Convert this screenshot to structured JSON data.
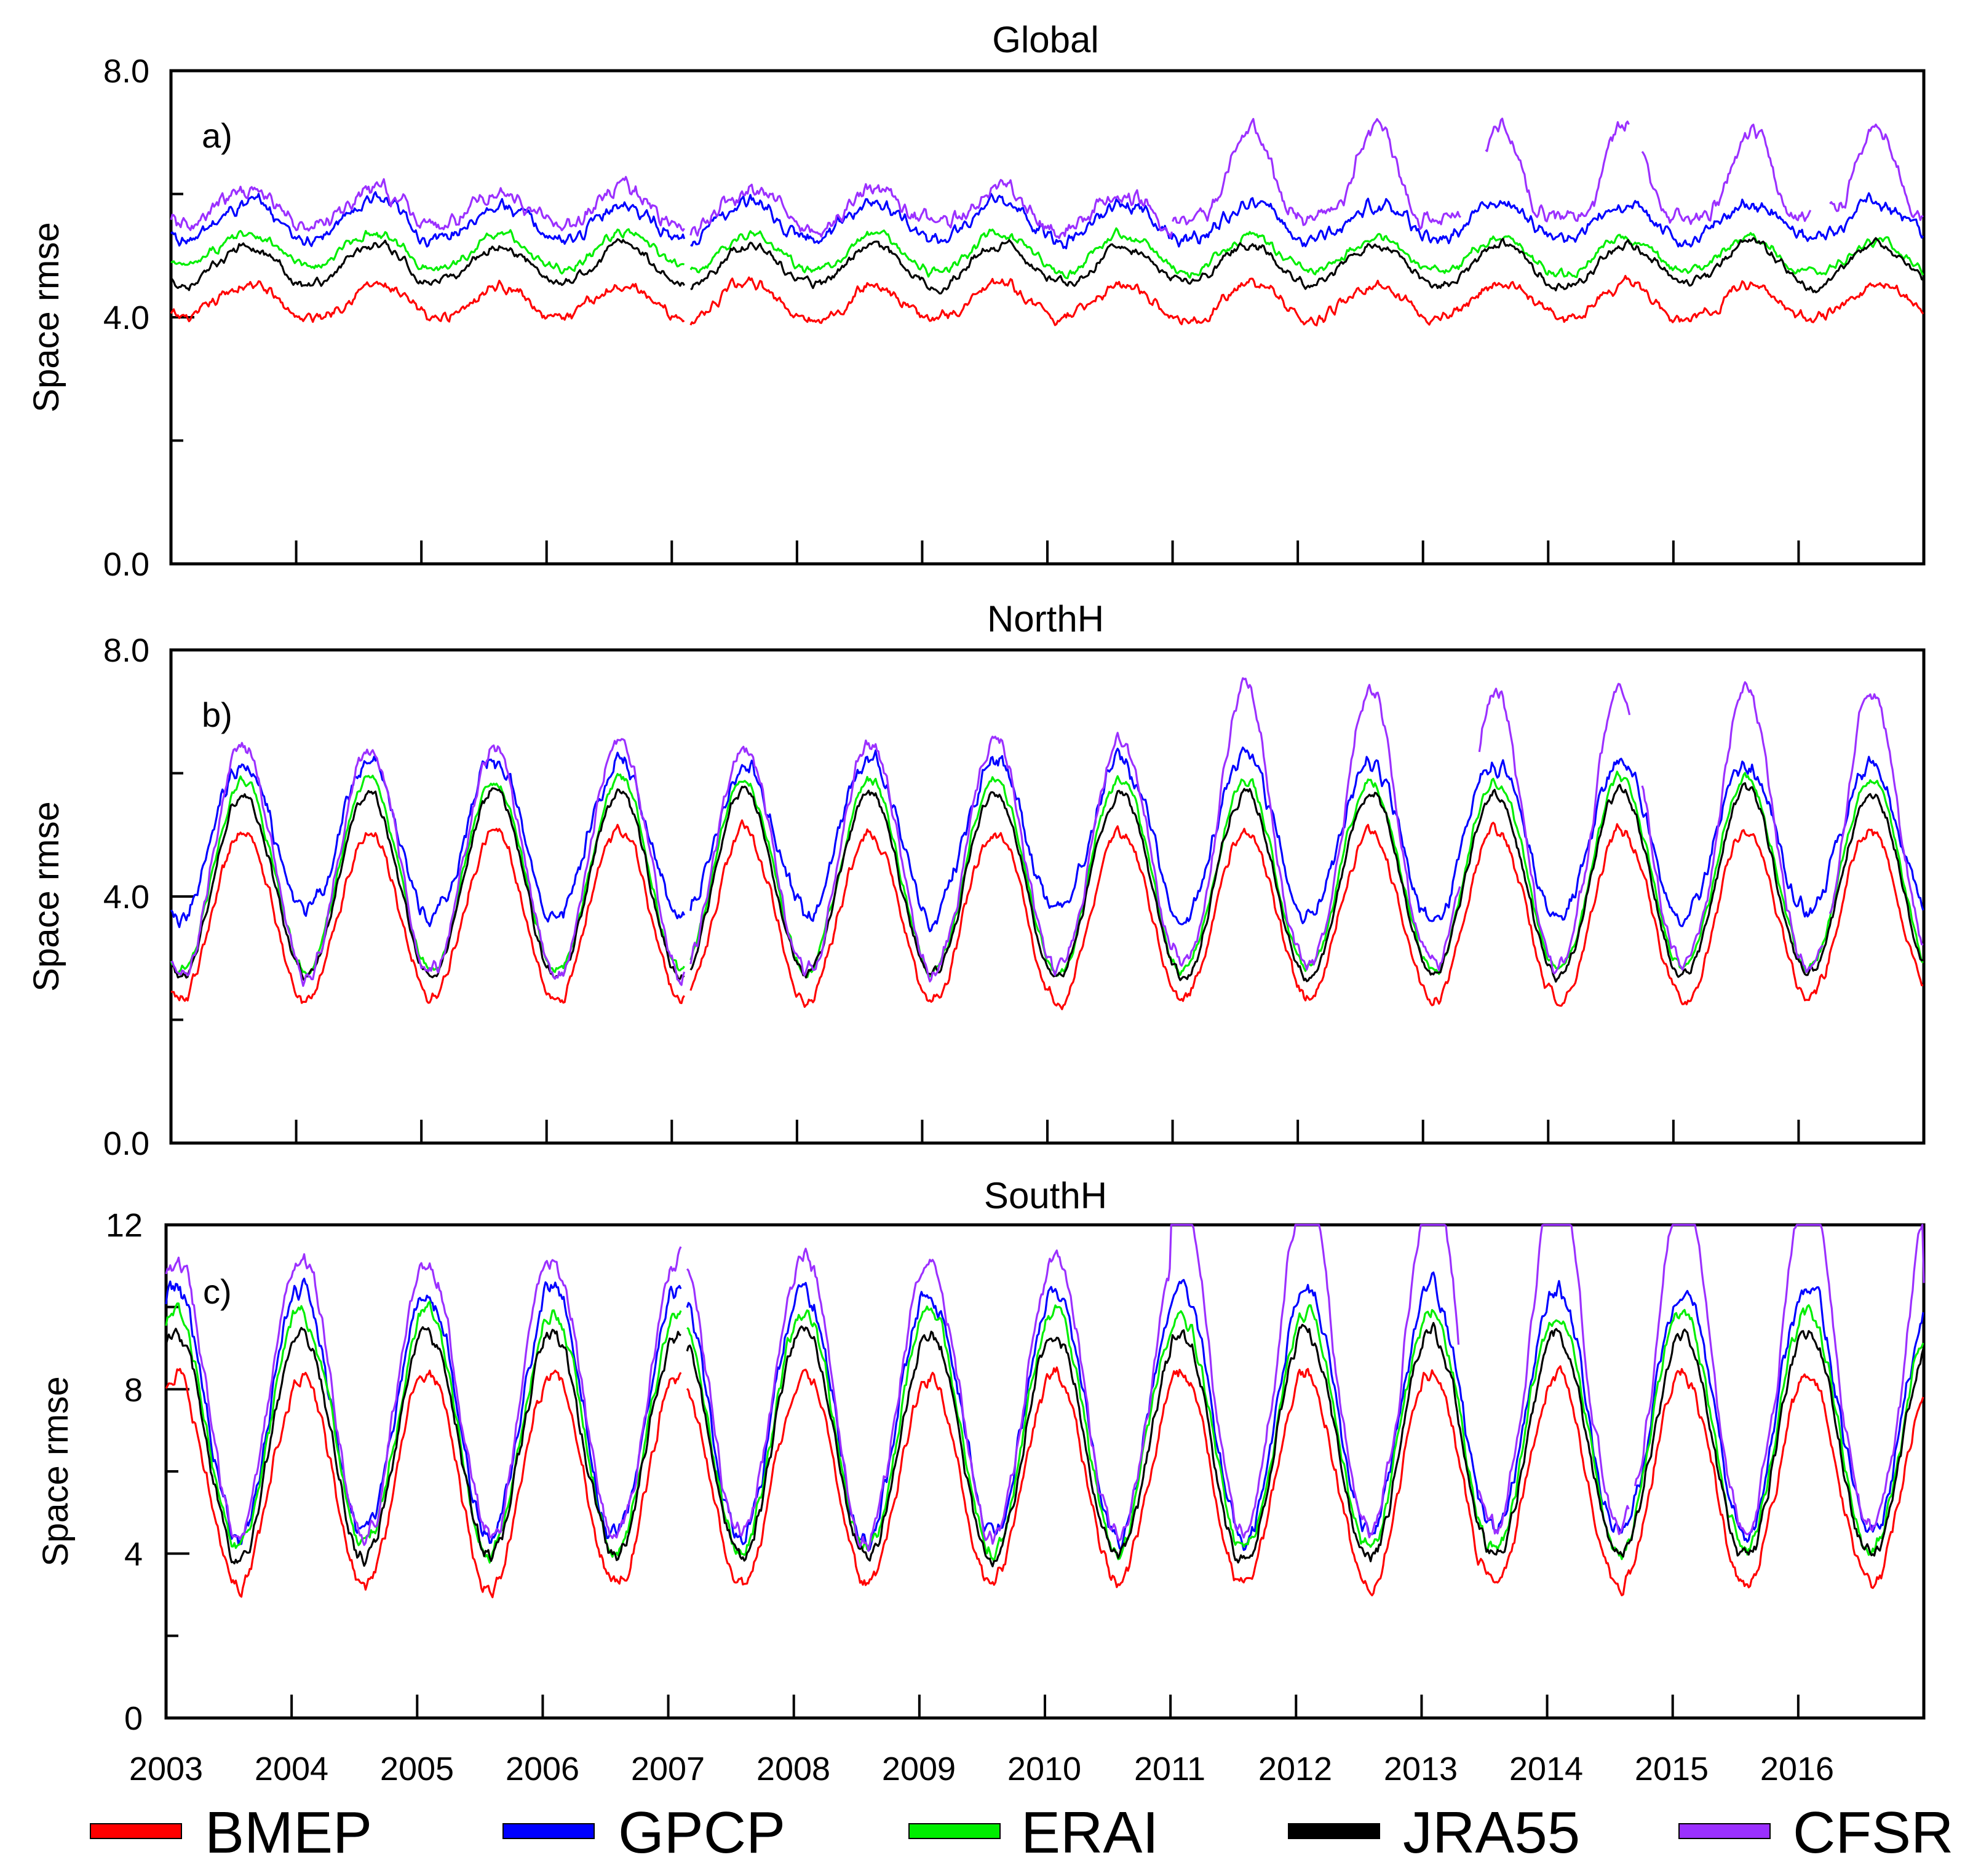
{
  "chart_data": {
    "type": "line",
    "x_tick_labels": [
      "2003",
      "2004",
      "2005",
      "2006",
      "2007",
      "2008",
      "2009",
      "2010",
      "2011",
      "2012",
      "2013",
      "2014",
      "2015",
      "2016"
    ],
    "xlim": [
      2003,
      2017
    ],
    "legend": [
      {
        "name": "BMEP",
        "color": "#ff0000"
      },
      {
        "name": "GPCP",
        "color": "#0000ff"
      },
      {
        "name": "ERAI",
        "color": "#00ee00"
      },
      {
        "name": "JRA55",
        "color": "#000000"
      },
      {
        "name": "CFSR",
        "color": "#9b30ff"
      }
    ],
    "legend_position": "bottom",
    "gaps": [
      [
        2007.1,
        2007.15
      ]
    ],
    "panels": [
      {
        "id": "global",
        "title": "Global",
        "letter": "a)",
        "ylabel": "Space rmse",
        "ylim": [
          0,
          8
        ],
        "y_tick_labels": [
          "0.0",
          "4.0",
          "8.0"
        ],
        "y_tick_values": [
          0,
          4,
          8
        ],
        "y_minor": [
          2,
          6
        ],
        "series": [
          {
            "name": "BMEP",
            "base": 4.25,
            "amp": 0.28,
            "phase": 0.62,
            "noise": 0.08,
            "trend": 0.0,
            "clip": 8
          },
          {
            "name": "GPCP",
            "base": 5.55,
            "amp": 0.3,
            "phase": 0.62,
            "noise": 0.1,
            "trend": 0.0,
            "clip": 8
          },
          {
            "name": "ERAI",
            "base": 5.1,
            "amp": 0.3,
            "phase": 0.62,
            "noise": 0.07,
            "trend": -0.01,
            "clip": 8
          },
          {
            "name": "JRA55",
            "base": 4.85,
            "amp": 0.32,
            "phase": 0.62,
            "noise": 0.07,
            "trend": 0.0,
            "clip": 8
          },
          {
            "name": "CFSR",
            "base": 5.75,
            "amp": 0.3,
            "phase": 0.62,
            "noise": 0.12,
            "trend": 0.0,
            "clip": 8,
            "segments": [
              [
                2003.0,
                2007.1
              ],
              [
                2007.15,
                2011.0
              ],
              [
                2011.0,
                2013.3
              ],
              [
                2013.5,
                2014.65
              ],
              [
                2014.75,
                2016.1
              ],
              [
                2016.25,
                2017.0
              ]
            ],
            "shift": [
              [
                2011.0,
                2017.0,
                0.9
              ]
            ]
          }
        ]
      },
      {
        "id": "northh",
        "title": "NorthH",
        "letter": "b)",
        "ylabel": "Space rmse",
        "ylim": [
          0,
          8
        ],
        "y_tick_labels": [
          "0.0",
          "4.0",
          "8.0"
        ],
        "y_tick_values": [
          0,
          4,
          8
        ],
        "y_minor": [
          2,
          6
        ],
        "series": [
          {
            "name": "BMEP",
            "base": 3.7,
            "amp": 1.35,
            "phase": 0.58,
            "noise": 0.1,
            "trend": 0.0,
            "clip": 8
          },
          {
            "name": "GPCP",
            "base": 4.95,
            "amp": 1.25,
            "phase": 0.58,
            "noise": 0.14,
            "trend": 0.0,
            "clip": 8
          },
          {
            "name": "ERAI",
            "base": 4.35,
            "amp": 1.55,
            "phase": 0.58,
            "noise": 0.08,
            "trend": 0.0,
            "clip": 8
          },
          {
            "name": "JRA55",
            "base": 4.2,
            "amp": 1.5,
            "phase": 0.58,
            "noise": 0.08,
            "trend": 0.0,
            "clip": 8
          },
          {
            "name": "CFSR",
            "base": 4.6,
            "amp": 1.85,
            "phase": 0.58,
            "noise": 0.12,
            "trend": 0.0,
            "clip": 8,
            "segments": [
              [
                2003.0,
                2007.1
              ],
              [
                2007.15,
                2013.3
              ],
              [
                2013.45,
                2014.65
              ],
              [
                2014.75,
                2016.2
              ],
              [
                2016.25,
                2017.0
              ]
            ],
            "shift": [
              [
                2011.0,
                2017.0,
                0.8
              ]
            ]
          }
        ]
      },
      {
        "id": "southh",
        "title": "SouthH",
        "letter": "c)",
        "ylabel": "Space rmse",
        "ylim": [
          0,
          12
        ],
        "y_tick_labels": [
          "0",
          "4",
          "8",
          "12"
        ],
        "y_tick_values": [
          0,
          4,
          8,
          12
        ],
        "y_minor": [
          2,
          6,
          10
        ],
        "series": [
          {
            "name": "BMEP",
            "base": 5.8,
            "amp": 2.55,
            "phase": 0.08,
            "noise": 0.18,
            "trend": 0.0,
            "clip": 12
          },
          {
            "name": "GPCP",
            "base": 7.45,
            "amp": 3.0,
            "phase": 0.08,
            "noise": 0.22,
            "trend": 0.0,
            "clip": 12
          },
          {
            "name": "ERAI",
            "base": 7.0,
            "amp": 2.9,
            "phase": 0.08,
            "noise": 0.18,
            "trend": 0.0,
            "clip": 12
          },
          {
            "name": "JRA55",
            "base": 6.65,
            "amp": 2.75,
            "phase": 0.08,
            "noise": 0.18,
            "trend": 0.0,
            "clip": 12
          },
          {
            "name": "CFSR",
            "base": 7.8,
            "amp": 3.4,
            "phase": 0.08,
            "noise": 0.22,
            "trend": 0.0,
            "clip": 12,
            "segments": [
              [
                2003.0,
                2007.1
              ],
              [
                2007.15,
                2013.3
              ],
              [
                2013.45,
                2014.65
              ],
              [
                2014.7,
                2017.0
              ]
            ],
            "shift": [
              [
                2011.0,
                2017.0,
                1.6
              ]
            ]
          }
        ]
      }
    ]
  }
}
